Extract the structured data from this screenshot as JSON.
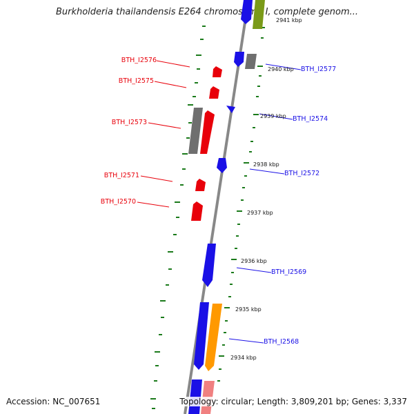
{
  "title": "Burkholderia thailandensis E264 chromosome I, complete genom...",
  "accession": "Accession: NC_007651",
  "topology": "Topology: circular; Length: 3,809,201 bp; Genes: 3,337",
  "colors": {
    "forward": "#e8000a",
    "reverse": "#1a10e6",
    "gray": "#6f6f6f",
    "orange": "#ff9900",
    "olive": "#7a9a18",
    "pink": "#f08080",
    "tick_mark": "#1a7a1a",
    "backbone": "#888888"
  },
  "ticks": [
    "2941 kbp",
    "2940 kbp",
    "2939 kbp",
    "2938 kbp",
    "2937 kbp",
    "2936 kbp",
    "2935 kbp",
    "2934 kbp"
  ],
  "genes_left": [
    "BTH_I2576",
    "BTH_I2575",
    "BTH_I2573",
    "BTH_I2571",
    "BTH_I2570"
  ],
  "genes_right": [
    "BTH_I2577",
    "BTH_I2574",
    "BTH_I2572",
    "BTH_I2569",
    "BTH_I2568"
  ]
}
